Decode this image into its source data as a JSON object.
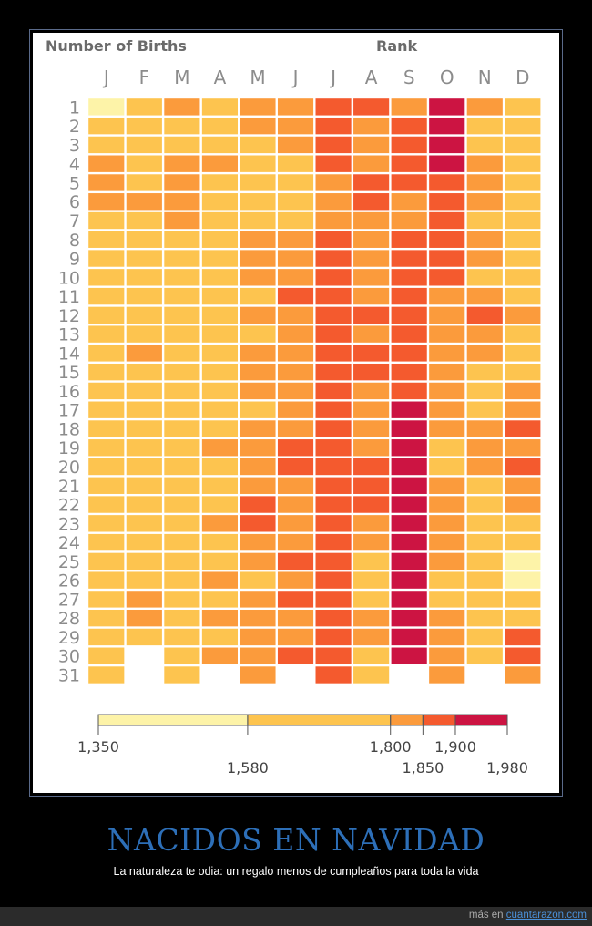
{
  "poster": {
    "title": "NACIDOS EN NAVIDAD",
    "subtitle": "La naturaleza te odia: un regalo menos de cumpleaños para toda la vida",
    "footer_prefix": "más en",
    "footer_link": "cuantarazon.com"
  },
  "chart_data": {
    "type": "heatmap",
    "heading_left": "Number of Births",
    "heading_right": "Rank",
    "x_labels": [
      "J",
      "F",
      "M",
      "A",
      "M",
      "J",
      "J",
      "A",
      "S",
      "O",
      "N",
      "D"
    ],
    "y_labels": [
      "1",
      "2",
      "3",
      "4",
      "5",
      "6",
      "7",
      "8",
      "9",
      "10",
      "11",
      "12",
      "13",
      "14",
      "15",
      "16",
      "17",
      "18",
      "19",
      "20",
      "21",
      "22",
      "23",
      "24",
      "25",
      "26",
      "27",
      "28",
      "29",
      "30",
      "31"
    ],
    "color_scale": {
      "ticks": [
        1350,
        1580,
        1800,
        1850,
        1900,
        1980
      ],
      "tick_labels": [
        "1,350",
        "1,580",
        "1,800",
        "1,850",
        "1,900",
        "1,980"
      ],
      "bins": [
        {
          "from": 1350,
          "to": 1580,
          "color": "#fdf3a8"
        },
        {
          "from": 1580,
          "to": 1800,
          "color": "#fdc44f"
        },
        {
          "from": 1800,
          "to": 1850,
          "color": "#fb9b3c"
        },
        {
          "from": 1850,
          "to": 1900,
          "color": "#f45a2e"
        },
        {
          "from": 1900,
          "to": 1980,
          "color": "#cc1442"
        }
      ]
    },
    "note": "Cell values are the color bin index (0 = 1,350–1,580 … 4 = 1,900–1,980); null = day does not exist",
    "rows": [
      [
        0,
        1,
        2,
        1,
        2,
        2,
        3,
        3,
        2,
        4,
        2,
        1
      ],
      [
        1,
        1,
        1,
        1,
        2,
        2,
        3,
        2,
        3,
        4,
        1,
        1
      ],
      [
        1,
        1,
        1,
        1,
        1,
        2,
        3,
        2,
        3,
        4,
        1,
        1
      ],
      [
        2,
        1,
        2,
        2,
        1,
        1,
        3,
        2,
        3,
        4,
        2,
        1
      ],
      [
        2,
        1,
        2,
        1,
        1,
        1,
        2,
        3,
        3,
        3,
        2,
        1
      ],
      [
        2,
        2,
        2,
        1,
        1,
        1,
        2,
        3,
        2,
        3,
        2,
        1
      ],
      [
        1,
        1,
        2,
        1,
        1,
        1,
        2,
        2,
        2,
        3,
        1,
        1
      ],
      [
        1,
        1,
        1,
        1,
        2,
        2,
        3,
        2,
        3,
        3,
        2,
        1
      ],
      [
        1,
        1,
        1,
        1,
        2,
        2,
        3,
        2,
        3,
        3,
        2,
        1
      ],
      [
        1,
        1,
        1,
        1,
        2,
        2,
        3,
        2,
        3,
        3,
        1,
        1
      ],
      [
        1,
        1,
        1,
        1,
        1,
        3,
        3,
        2,
        3,
        2,
        2,
        1
      ],
      [
        1,
        1,
        1,
        1,
        2,
        2,
        3,
        3,
        3,
        2,
        3,
        2
      ],
      [
        1,
        1,
        1,
        1,
        1,
        2,
        3,
        2,
        3,
        2,
        2,
        1
      ],
      [
        1,
        2,
        1,
        1,
        2,
        2,
        3,
        3,
        3,
        2,
        2,
        1
      ],
      [
        1,
        1,
        1,
        1,
        2,
        2,
        3,
        3,
        3,
        2,
        1,
        1
      ],
      [
        1,
        1,
        1,
        1,
        2,
        2,
        3,
        2,
        3,
        2,
        1,
        2
      ],
      [
        1,
        1,
        1,
        1,
        1,
        2,
        3,
        2,
        4,
        2,
        1,
        2
      ],
      [
        1,
        1,
        1,
        1,
        2,
        2,
        3,
        2,
        4,
        2,
        2,
        3
      ],
      [
        1,
        1,
        1,
        2,
        2,
        3,
        3,
        2,
        4,
        1,
        2,
        2
      ],
      [
        1,
        1,
        1,
        1,
        2,
        3,
        3,
        3,
        4,
        1,
        2,
        3
      ],
      [
        1,
        1,
        1,
        1,
        2,
        2,
        3,
        3,
        4,
        2,
        1,
        2
      ],
      [
        1,
        1,
        1,
        1,
        3,
        2,
        3,
        3,
        4,
        2,
        1,
        2
      ],
      [
        1,
        1,
        1,
        2,
        3,
        2,
        3,
        2,
        4,
        2,
        1,
        1
      ],
      [
        1,
        1,
        1,
        1,
        2,
        2,
        3,
        2,
        4,
        2,
        1,
        1
      ],
      [
        1,
        1,
        1,
        1,
        2,
        3,
        3,
        1,
        4,
        2,
        1,
        0
      ],
      [
        1,
        1,
        1,
        2,
        1,
        2,
        3,
        1,
        4,
        1,
        1,
        0
      ],
      [
        1,
        2,
        1,
        1,
        2,
        3,
        3,
        1,
        4,
        1,
        1,
        1
      ],
      [
        1,
        2,
        1,
        2,
        2,
        2,
        3,
        2,
        4,
        2,
        1,
        1
      ],
      [
        1,
        1,
        1,
        1,
        2,
        2,
        3,
        2,
        4,
        2,
        1,
        3
      ],
      [
        1,
        null,
        1,
        2,
        2,
        3,
        3,
        1,
        4,
        2,
        1,
        3
      ],
      [
        1,
        null,
        1,
        null,
        2,
        null,
        3,
        1,
        null,
        2,
        null,
        2
      ]
    ]
  }
}
